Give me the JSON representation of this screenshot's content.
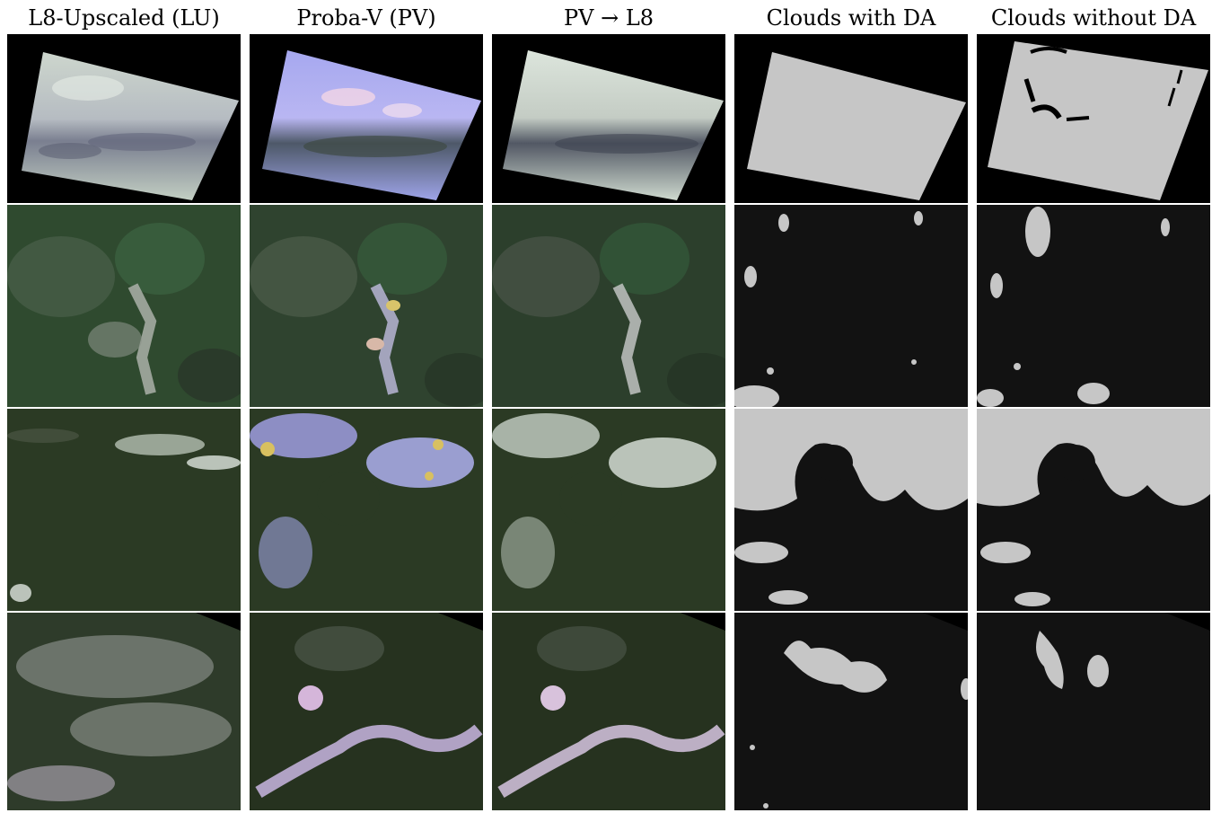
{
  "columns": [
    {
      "key": "lu",
      "title": "L8-Upscaled (LU)"
    },
    {
      "key": "pv",
      "title": "Proba-V (PV)"
    },
    {
      "key": "pvl8",
      "title": "PV → L8"
    },
    {
      "key": "with_da",
      "title": "Clouds with DA"
    },
    {
      "key": "without_da",
      "title": "Clouds without DA"
    }
  ],
  "rows": [
    {
      "scene": "scene-1",
      "content": [
        "cloudy-satellite-rotated",
        "cloudy-satellite-rotated-blue",
        "cloudy-satellite-rotated",
        "cloud-mask-full",
        "cloud-mask-near-full"
      ]
    },
    {
      "scene": "scene-2",
      "content": [
        "mountain-forest",
        "mountain-forest",
        "mountain-forest",
        "cloud-mask-sparse",
        "cloud-mask-sparse"
      ]
    },
    {
      "scene": "scene-3",
      "content": [
        "forest-with-clouds",
        "forest-with-clouds-blue",
        "forest-with-clouds",
        "cloud-mask-dense",
        "cloud-mask-dense"
      ]
    },
    {
      "scene": "scene-4",
      "content": [
        "hazy-forest",
        "forest-snow",
        "forest-snow",
        "cloud-mask-blobs",
        "cloud-mask-small-blob"
      ]
    }
  ],
  "colors": {
    "mask_cloud": "#c6c6c6",
    "mask_bg": "#121212",
    "forest": "#2c3b22",
    "cloud": "#dfe6df"
  }
}
